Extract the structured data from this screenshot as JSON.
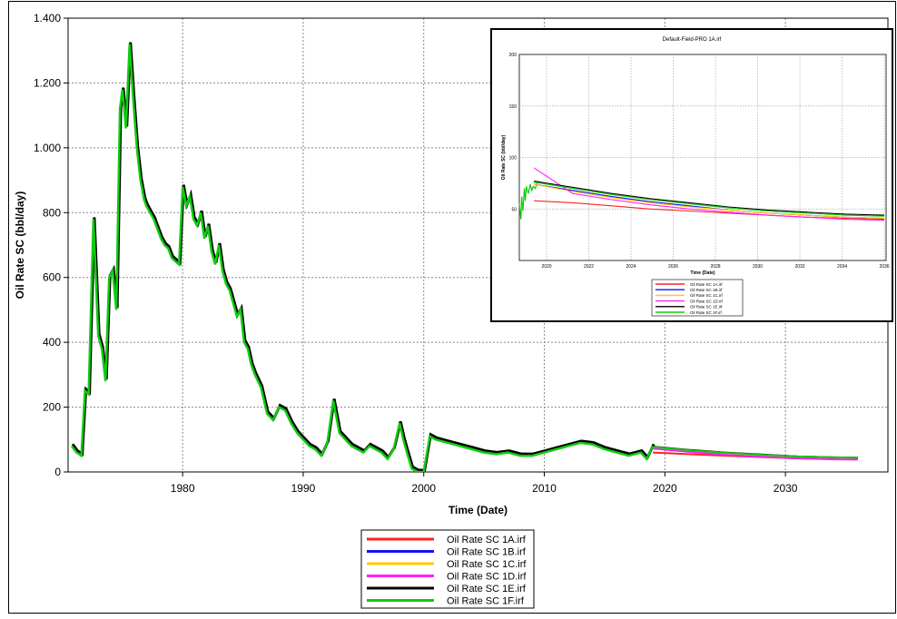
{
  "chart_data": [
    {
      "type": "line",
      "title": "",
      "xlabel": "Time (Date)",
      "ylabel": "Oil Rate SC (bbl/day)",
      "xlim": [
        1970.5,
        2038.5
      ],
      "ylim": [
        0,
        1400
      ],
      "grid": true,
      "legend_position": "bottom-center",
      "x_ticks": [
        1980,
        1990,
        2000,
        2010,
        2020,
        2030
      ],
      "x_tick_labels": [
        "1980",
        "1990",
        "2000",
        "2010",
        "2020",
        "2030"
      ],
      "y_ticks": [
        0,
        200,
        400,
        600,
        800,
        1000,
        1200,
        1400
      ],
      "y_tick_labels": [
        "0",
        "200",
        "400",
        "600",
        "800",
        "1.000",
        "1.200",
        "1.400"
      ],
      "legend": [
        {
          "label": "Oil Rate SC 1A.irf",
          "color": "#ff2020"
        },
        {
          "label": "Oil Rate SC 1B.irf",
          "color": "#1010ff"
        },
        {
          "label": "Oil Rate SC 1C.irf",
          "color": "#ffcc00"
        },
        {
          "label": "Oil Rate SC 1D.irf",
          "color": "#ff20ff"
        },
        {
          "label": "Oil Rate SC 1E.irf",
          "color": "#000000"
        },
        {
          "label": "Oil Rate SC 1F.irf",
          "color": "#10cc10"
        }
      ],
      "history": {
        "name": "Oil Rate SC 1F.irf",
        "color": "#10cc10",
        "x": [
          1970.8,
          1971.2,
          1971.6,
          1971.9,
          1972.2,
          1972.6,
          1973.0,
          1973.3,
          1973.6,
          1973.9,
          1974.2,
          1974.5,
          1974.8,
          1975.0,
          1975.3,
          1975.6,
          1975.9,
          1976.2,
          1976.5,
          1976.8,
          1977.0,
          1977.3,
          1977.6,
          1977.9,
          1978.2,
          1978.5,
          1978.8,
          1979.1,
          1979.4,
          1979.7,
          1980.0,
          1980.3,
          1980.6,
          1980.9,
          1981.2,
          1981.5,
          1981.8,
          1982.1,
          1982.4,
          1982.7,
          1983.0,
          1983.3,
          1983.6,
          1983.9,
          1984.2,
          1984.5,
          1984.8,
          1985.1,
          1985.4,
          1985.7,
          1986.0,
          1986.5,
          1987.0,
          1987.5,
          1988.0,
          1988.5,
          1989.0,
          1989.5,
          1990.0,
          1990.5,
          1991.0,
          1991.5,
          1992.0,
          1992.5,
          1993.0,
          1993.5,
          1994.0,
          1994.5,
          1995.0,
          1995.5,
          1996.0,
          1996.5,
          1997.0,
          1997.5,
          1998.0,
          1998.3,
          1998.6,
          1999.0,
          1999.5,
          2000.0,
          2000.5,
          2001.0,
          2002.0,
          2003.0,
          2004.0,
          2005.0,
          2006.0,
          2007.0,
          2008.0,
          2009.0,
          2010.0,
          2011.0,
          2012.0,
          2013.0,
          2014.0,
          2015.0,
          2016.0,
          2017.0,
          2018.0,
          2018.5,
          2019.0
        ],
        "y": [
          80,
          60,
          50,
          250,
          240,
          780,
          420,
          380,
          280,
          600,
          620,
          500,
          1120,
          1180,
          1060,
          1320,
          1150,
          1000,
          900,
          840,
          820,
          800,
          780,
          750,
          720,
          700,
          690,
          660,
          650,
          640,
          880,
          820,
          850,
          780,
          760,
          800,
          720,
          760,
          680,
          640,
          700,
          620,
          580,
          560,
          520,
          480,
          500,
          400,
          380,
          330,
          300,
          260,
          180,
          160,
          200,
          190,
          150,
          120,
          100,
          80,
          70,
          50,
          90,
          220,
          120,
          100,
          80,
          70,
          60,
          80,
          70,
          60,
          40,
          70,
          150,
          100,
          60,
          10,
          0,
          0,
          110,
          100,
          90,
          80,
          70,
          60,
          55,
          60,
          50,
          50,
          60,
          70,
          80,
          90,
          85,
          70,
          60,
          50,
          60,
          40,
          80
        ]
      },
      "forecast_series": [
        {
          "name": "Oil Rate SC 1A.irf",
          "color": "#ff2020",
          "x": [
            2019.0,
            2022,
            2025,
            2028,
            2031,
            2034,
            2036
          ],
          "y": [
            60,
            55,
            50,
            46,
            42,
            40,
            40
          ]
        },
        {
          "name": "Oil Rate SC 1B.irf",
          "color": "#1010ff",
          "x": [
            2019.0,
            2022,
            2025,
            2028,
            2031,
            2034,
            2036
          ],
          "y": [
            75,
            66,
            57,
            50,
            45,
            42,
            42
          ]
        },
        {
          "name": "Oil Rate SC 1C.irf",
          "color": "#ffcc00",
          "x": [
            2019.0,
            2022,
            2025,
            2028,
            2031,
            2034,
            2036
          ],
          "y": [
            74,
            65,
            56,
            49,
            44,
            41,
            41
          ]
        },
        {
          "name": "Oil Rate SC 1D.irf",
          "color": "#ff20ff",
          "x": [
            2019.0,
            2022,
            2025,
            2028,
            2031,
            2034,
            2036
          ],
          "y": [
            72,
            62,
            53,
            47,
            42,
            39,
            38
          ]
        },
        {
          "name": "Oil Rate SC 1E.irf",
          "color": "#000000",
          "x": [
            2019.0,
            2022,
            2025,
            2028,
            2031,
            2034,
            2036
          ],
          "y": [
            78,
            68,
            60,
            54,
            48,
            45,
            44
          ]
        },
        {
          "name": "Oil Rate SC 1F.irf",
          "color": "#10cc10",
          "x": [
            2019.0,
            2022,
            2025,
            2028,
            2031,
            2034,
            2036
          ],
          "y": [
            77,
            67,
            59,
            53,
            48,
            45,
            44
          ]
        }
      ]
    },
    {
      "type": "line",
      "title": "Default-Field-PRO 1A.irf",
      "xlabel": "Time (Date)",
      "ylabel": "Oil Rate SC (bbl/day)",
      "ylim": [
        0,
        200
      ],
      "y_ticks": [
        0,
        50,
        100,
        150,
        200
      ],
      "y_tick_labels": [
        "",
        "50",
        "100",
        "150",
        "200"
      ],
      "x_tick_labels": [
        "2020",
        "2022",
        "2024",
        "2026",
        "2028",
        "2030",
        "2032",
        "2034",
        "2036"
      ],
      "legend": [
        {
          "label": "Oil Rate SC 1A.irf",
          "color": "#ff2020"
        },
        {
          "label": "Oil Rate SC 1B.irf",
          "color": "#1010ff"
        },
        {
          "label": "Oil Rate SC 1C.irf",
          "color": "#ffcc00"
        },
        {
          "label": "Oil Rate SC 1D.irf",
          "color": "#ff20ff"
        },
        {
          "label": "Oil Rate SC 1E.irf",
          "color": "#000000"
        },
        {
          "label": "Oil Rate SC 1F.irf",
          "color": "#10cc10"
        }
      ],
      "lead_in": {
        "color": "#10cc10",
        "x": [
          0.0,
          0.08,
          0.12,
          0.18,
          0.25,
          0.3,
          0.35,
          0.45,
          0.55,
          0.62,
          0.7,
          0.8,
          0.9,
          1.0
        ],
        "y": [
          55,
          40,
          62,
          48,
          70,
          58,
          72,
          65,
          74,
          68,
          72,
          70,
          75,
          77
        ]
      },
      "series": [
        {
          "name": "Oil Rate SC 1A.irf",
          "color": "#ff2020",
          "y": [
            58,
            56,
            53,
            50,
            48,
            46,
            44,
            42,
            41,
            40
          ]
        },
        {
          "name": "Oil Rate SC 1B.irf",
          "color": "#1010ff",
          "y": [
            74,
            68,
            62,
            57,
            53,
            49,
            46,
            44,
            42,
            41
          ]
        },
        {
          "name": "Oil Rate SC 1C.irf",
          "color": "#ffcc00",
          "y": [
            74,
            67,
            61,
            56,
            52,
            49,
            46,
            44,
            42,
            41
          ]
        },
        {
          "name": "Oil Rate SC 1D.irf",
          "color": "#ff20ff",
          "y": [
            90,
            65,
            59,
            54,
            50,
            47,
            44,
            42,
            40,
            39
          ]
        },
        {
          "name": "Oil Rate SC 1E.irf",
          "color": "#000000",
          "y": [
            77,
            71,
            65,
            60,
            56,
            52,
            49,
            47,
            45,
            44
          ]
        },
        {
          "name": "Oil Rate SC 1F.irf",
          "color": "#10cc10",
          "y": [
            76,
            70,
            64,
            59,
            55,
            51,
            48,
            46,
            44,
            43
          ]
        }
      ]
    }
  ]
}
